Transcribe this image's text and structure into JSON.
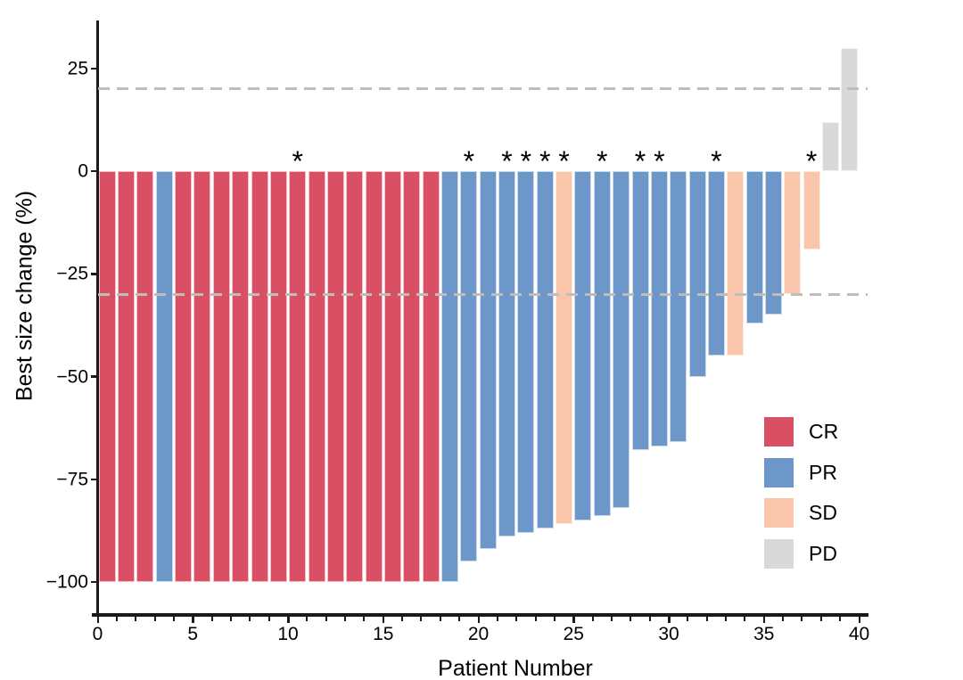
{
  "chart_data": {
    "type": "bar",
    "title": "",
    "xlabel": "Patient Number",
    "ylabel": "Best size change (%)",
    "x_axis": {
      "min": 0,
      "max": 40,
      "major_ticks": [
        0,
        5,
        10,
        15,
        20,
        25,
        30,
        35,
        40
      ],
      "minor_tick_every": 1
    },
    "y_axis": {
      "ticks": [
        25,
        0,
        -25,
        -50,
        -75,
        -100
      ],
      "tick_labels": [
        "25",
        "0",
        "−25",
        "−50",
        "−75",
        "−100"
      ]
    },
    "ylim": [
      -108,
      37
    ],
    "grid": false,
    "reference_lines": [
      {
        "y": 20,
        "style": "dashed"
      },
      {
        "y": -30,
        "style": "dashed"
      }
    ],
    "legend": {
      "position": "right-lower",
      "entries": [
        {
          "label": "CR",
          "color": "#D94F63"
        },
        {
          "label": "PR",
          "color": "#6D97C8"
        },
        {
          "label": "SD",
          "color": "#F9C5AB"
        },
        {
          "label": "PD",
          "color": "#D9D9D9"
        }
      ]
    },
    "annotation_marker": "*",
    "patients": [
      {
        "patient": 1,
        "response": "CR",
        "value": -100,
        "asterisk": false
      },
      {
        "patient": 2,
        "response": "CR",
        "value": -100,
        "asterisk": false
      },
      {
        "patient": 3,
        "response": "CR",
        "value": -100,
        "asterisk": false
      },
      {
        "patient": 4,
        "response": "PR",
        "value": -100,
        "asterisk": false
      },
      {
        "patient": 5,
        "response": "CR",
        "value": -100,
        "asterisk": false
      },
      {
        "patient": 6,
        "response": "CR",
        "value": -100,
        "asterisk": false
      },
      {
        "patient": 7,
        "response": "CR",
        "value": -100,
        "asterisk": false
      },
      {
        "patient": 8,
        "response": "CR",
        "value": -100,
        "asterisk": false
      },
      {
        "patient": 9,
        "response": "CR",
        "value": -100,
        "asterisk": false
      },
      {
        "patient": 10,
        "response": "CR",
        "value": -100,
        "asterisk": false
      },
      {
        "patient": 11,
        "response": "CR",
        "value": -100,
        "asterisk": true
      },
      {
        "patient": 12,
        "response": "CR",
        "value": -100,
        "asterisk": false
      },
      {
        "patient": 13,
        "response": "CR",
        "value": -100,
        "asterisk": false
      },
      {
        "patient": 14,
        "response": "CR",
        "value": -100,
        "asterisk": false
      },
      {
        "patient": 15,
        "response": "CR",
        "value": -100,
        "asterisk": false
      },
      {
        "patient": 16,
        "response": "CR",
        "value": -100,
        "asterisk": false
      },
      {
        "patient": 17,
        "response": "CR",
        "value": -100,
        "asterisk": false
      },
      {
        "patient": 18,
        "response": "CR",
        "value": -100,
        "asterisk": false
      },
      {
        "patient": 19,
        "response": "PR",
        "value": -100,
        "asterisk": false
      },
      {
        "patient": 20,
        "response": "PR",
        "value": -95,
        "asterisk": true
      },
      {
        "patient": 21,
        "response": "PR",
        "value": -92,
        "asterisk": false
      },
      {
        "patient": 22,
        "response": "PR",
        "value": -89,
        "asterisk": true
      },
      {
        "patient": 23,
        "response": "PR",
        "value": -88,
        "asterisk": true
      },
      {
        "patient": 24,
        "response": "PR",
        "value": -87,
        "asterisk": true
      },
      {
        "patient": 25,
        "response": "SD",
        "value": -86,
        "asterisk": true
      },
      {
        "patient": 26,
        "response": "PR",
        "value": -85,
        "asterisk": false
      },
      {
        "patient": 27,
        "response": "PR",
        "value": -84,
        "asterisk": true
      },
      {
        "patient": 28,
        "response": "PR",
        "value": -82,
        "asterisk": false
      },
      {
        "patient": 29,
        "response": "PR",
        "value": -68,
        "asterisk": true
      },
      {
        "patient": 30,
        "response": "PR",
        "value": -67,
        "asterisk": true
      },
      {
        "patient": 31,
        "response": "PR",
        "value": -66,
        "asterisk": false
      },
      {
        "patient": 32,
        "response": "PR",
        "value": -50,
        "asterisk": false
      },
      {
        "patient": 33,
        "response": "PR",
        "value": -45,
        "asterisk": true
      },
      {
        "patient": 34,
        "response": "SD",
        "value": -45,
        "asterisk": false
      },
      {
        "patient": 35,
        "response": "PR",
        "value": -37,
        "asterisk": false
      },
      {
        "patient": 36,
        "response": "PR",
        "value": -35,
        "asterisk": false
      },
      {
        "patient": 37,
        "response": "SD",
        "value": -30,
        "asterisk": false
      },
      {
        "patient": 38,
        "response": "SD",
        "value": -19,
        "asterisk": true
      },
      {
        "patient": 39,
        "response": "PD",
        "value": 12,
        "asterisk": false
      },
      {
        "patient": 40,
        "response": "PD",
        "value": 30,
        "asterisk": false
      }
    ]
  },
  "colors": {
    "axis": "#1A1A1A",
    "text": "#000000",
    "dashed_line": "#BDBDBD",
    "background": "#FFFFFF"
  }
}
